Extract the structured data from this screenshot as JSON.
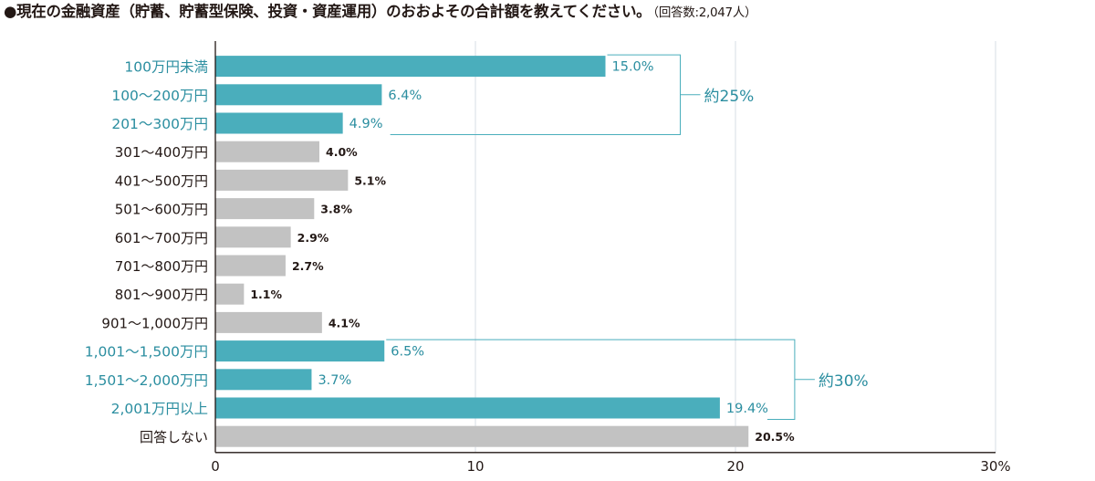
{
  "title": {
    "main": "●現在の金融資産（貯蓄、貯蓄型保険、投資・資産運用）のおおよその合計額を教えてください。",
    "note": "（回答数:2,047人）"
  },
  "colors": {
    "highlight": "#4aaebc",
    "normal": "#c2c2c2",
    "highlight_text": "#2b8ea0",
    "normal_text": "#231815",
    "grid": "#d7dde6"
  },
  "chart_data": {
    "type": "bar",
    "orientation": "horizontal",
    "categories": [
      "100万円未満",
      "100〜200万円",
      "201〜300万円",
      "301〜400万円",
      "401〜500万円",
      "501〜600万円",
      "601〜700万円",
      "701〜800万円",
      "801〜900万円",
      "901〜1,000万円",
      "1,001〜1,500万円",
      "1,501〜2,000万円",
      "2,001万円以上",
      "回答しない"
    ],
    "values": [
      15.0,
      6.4,
      4.9,
      4.0,
      5.1,
      3.8,
      2.9,
      2.7,
      1.1,
      4.1,
      6.5,
      3.7,
      19.4,
      20.5
    ],
    "value_labels": [
      "15.0%",
      "6.4%",
      "4.9%",
      "4.0%",
      "5.1%",
      "3.8%",
      "2.9%",
      "2.7%",
      "1.1%",
      "4.1%",
      "6.5%",
      "3.7%",
      "19.4%",
      "20.5%"
    ],
    "highlighted": [
      true,
      true,
      true,
      false,
      false,
      false,
      false,
      false,
      false,
      false,
      true,
      true,
      true,
      false
    ],
    "xlim": [
      0,
      30
    ],
    "xticks": [
      "0",
      "10",
      "20",
      "30"
    ],
    "x_unit": "%",
    "grid": true,
    "annotations": [
      {
        "text": "約25%",
        "from_index": 0,
        "to_index": 2
      },
      {
        "text": "約30%",
        "from_index": 10,
        "to_index": 12
      }
    ]
  }
}
